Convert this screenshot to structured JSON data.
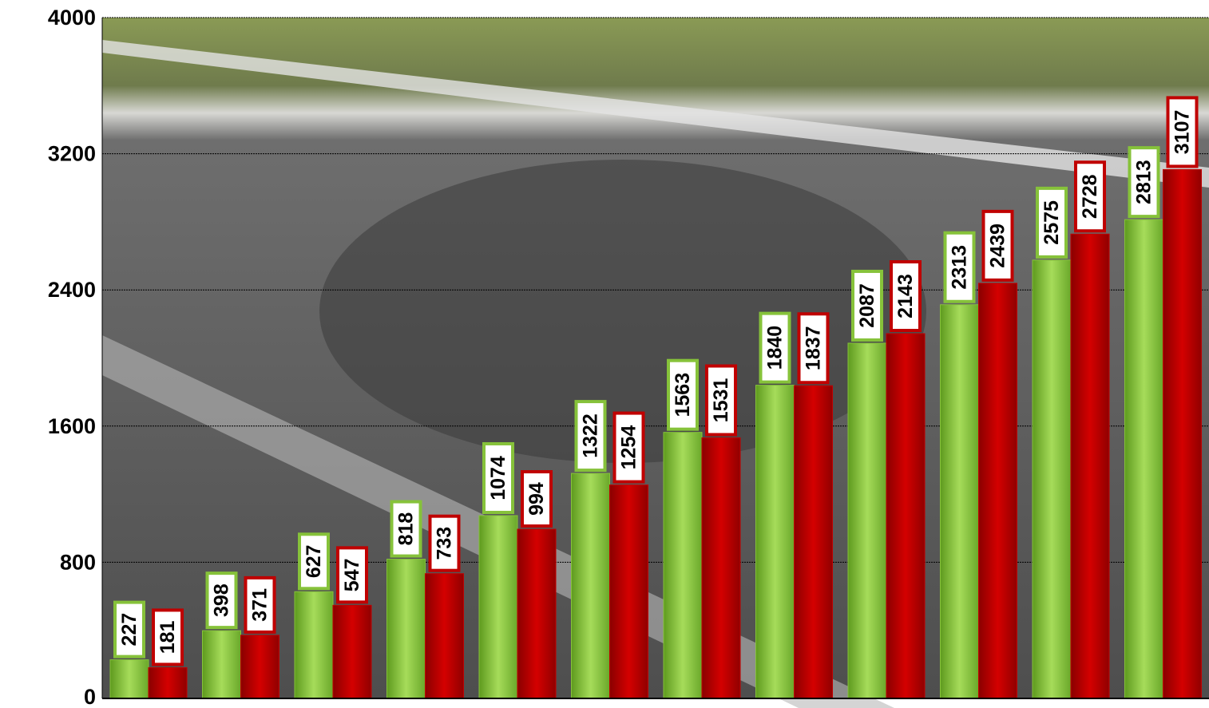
{
  "chart_data": {
    "type": "bar",
    "categories": [
      null,
      null,
      null,
      null,
      null,
      null,
      null,
      null,
      null,
      null,
      null,
      null
    ],
    "series": [
      {
        "color": "#86c23a",
        "values": [
          227,
          398,
          627,
          818,
          1074,
          1322,
          1563,
          1840,
          2087,
          2313,
          2575,
          2813
        ]
      },
      {
        "color": "#c00000",
        "values": [
          181,
          371,
          547,
          733,
          994,
          1254,
          1531,
          1837,
          2143,
          2439,
          2728,
          3107
        ]
      }
    ],
    "ylim": [
      0,
      4000
    ],
    "yticks": [
      0,
      800,
      1600,
      2400,
      3200,
      4000
    ],
    "grid": true
  }
}
